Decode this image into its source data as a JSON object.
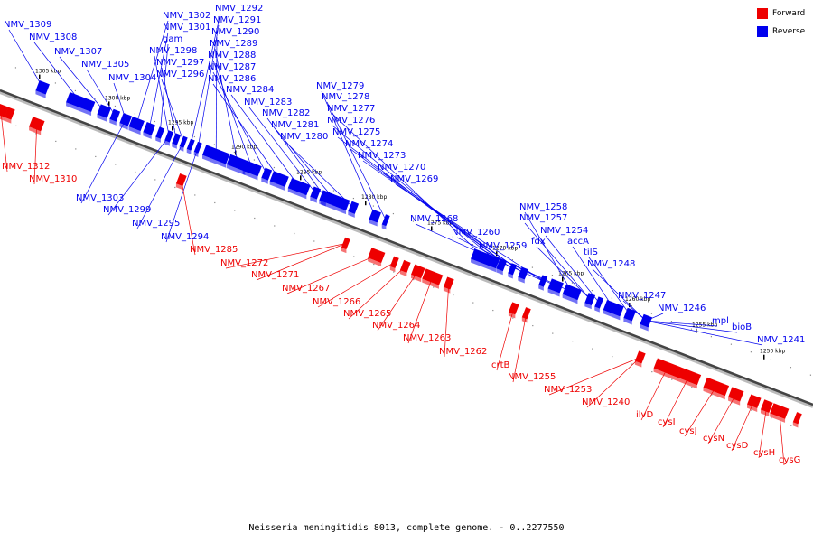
{
  "legend": {
    "forward_label": "Forward",
    "reverse_label": "Reverse",
    "forward_color": "#ee0000",
    "reverse_color": "#0000ee"
  },
  "caption": "Neisseria meningitidis 8013, complete genome. - 0..2277550",
  "ticks": [
    "1305 kbp",
    "1300 kbp",
    "1295 kbp",
    "1290 kbp",
    "1285 kbp",
    "1280 kbp",
    "1275 kbp",
    "1270 kbp",
    "1265 kbp",
    "1260 kbp",
    "1255 kbp",
    "1250 kbp"
  ],
  "reverse_labels": [
    "NMV_1309",
    "NMV_1308",
    "NMV_1307",
    "NMV_1305",
    "NMV_1304",
    "NMV_1302",
    "NMV_1301",
    "gam",
    "NMV_1298",
    "NMV_1297",
    "NMV_1296",
    "NMV_1292",
    "NMV_1291",
    "NMV_1290",
    "NMV_1289",
    "NMV_1288",
    "NMV_1287",
    "NMV_1286",
    "NMV_1284",
    "NMV_1283",
    "NMV_1282",
    "NMV_1281",
    "NMV_1280",
    "NMV_1279",
    "NMV_1278",
    "NMV_1277",
    "NMV_1276",
    "NMV_1275",
    "NMV_1274",
    "NMV_1273",
    "NMV_1270",
    "NMV_1269",
    "NMV_1268",
    "NMV_1260",
    "NMV_1259",
    "fdx",
    "NMV_1258",
    "NMV_1257",
    "NMV_1254",
    "accA",
    "tilS",
    "NMV_1248",
    "NMV_1247",
    "NMV_1246",
    "mpl",
    "bioB",
    "NMV_1241",
    "NMV_1303",
    "NMV_1299",
    "NMV_1295",
    "NMV_1294"
  ],
  "forward_labels": [
    "NMV_1312",
    "NMV_1310",
    "NMV_1285",
    "NMV_1272",
    "NMV_1271",
    "NMV_1267",
    "NMV_1266",
    "NMV_1265",
    "NMV_1264",
    "NMV_1263",
    "NMV_1262",
    "crtB",
    "NMV_1255",
    "NMV_1253",
    "NMV_1240",
    "ilvD",
    "cysI",
    "cysJ",
    "cysN",
    "cysD",
    "cysH",
    "cysG"
  ]
}
